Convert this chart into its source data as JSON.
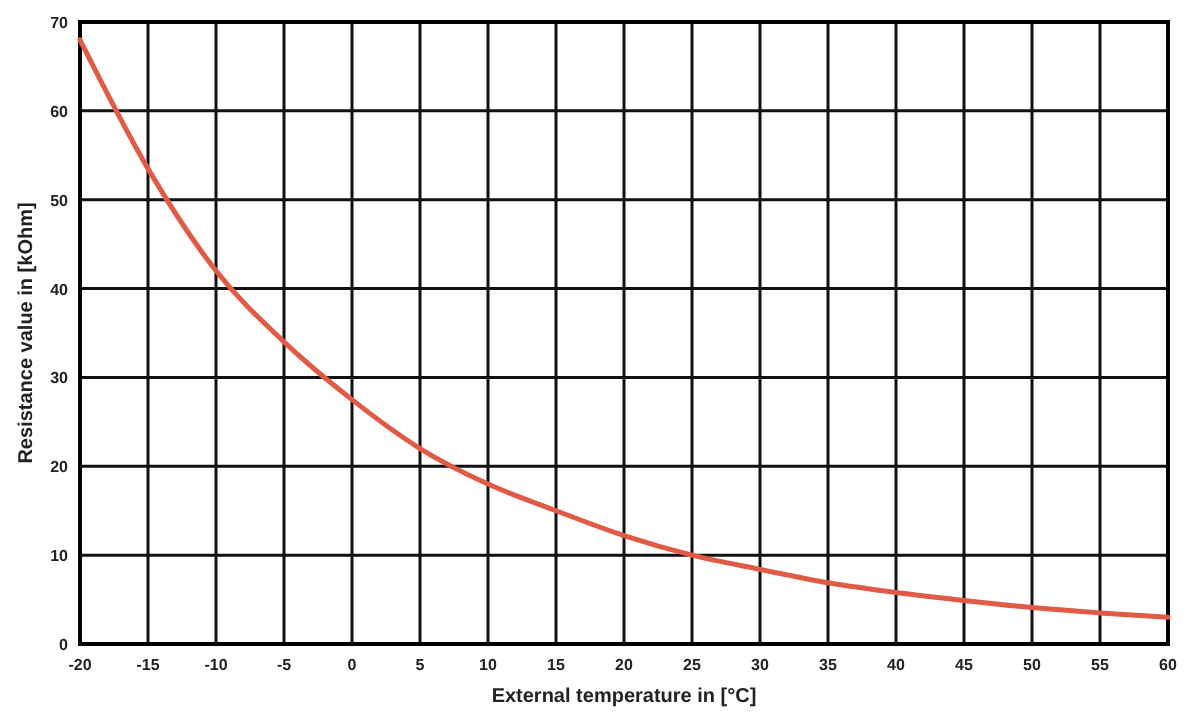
{
  "chart_data": {
    "type": "line",
    "xlabel": "External temperature in [°C]",
    "ylabel": "Resistance value in [kOhm]",
    "x": [
      -20,
      -15,
      -10,
      -5,
      0,
      5,
      10,
      15,
      20,
      25,
      30,
      35,
      40,
      45,
      50,
      55,
      60
    ],
    "series": [
      {
        "color": "#e05a46",
        "values": [
          68,
          53.5,
          42,
          34,
          27.5,
          22,
          18,
          15,
          12.2,
          10,
          8.4,
          6.9,
          5.8,
          4.9,
          4.1,
          3.5,
          3
        ]
      }
    ],
    "xlim": [
      -20,
      60
    ],
    "xticks": [
      -20,
      -15,
      -10,
      -5,
      0,
      5,
      10,
      15,
      20,
      25,
      30,
      35,
      40,
      45,
      50,
      55,
      60
    ],
    "ylim": [
      0,
      70
    ],
    "yticks": [
      0,
      10,
      20,
      30,
      40,
      50,
      60,
      70
    ],
    "grid": true,
    "marker": "none",
    "line_style": "solid"
  }
}
